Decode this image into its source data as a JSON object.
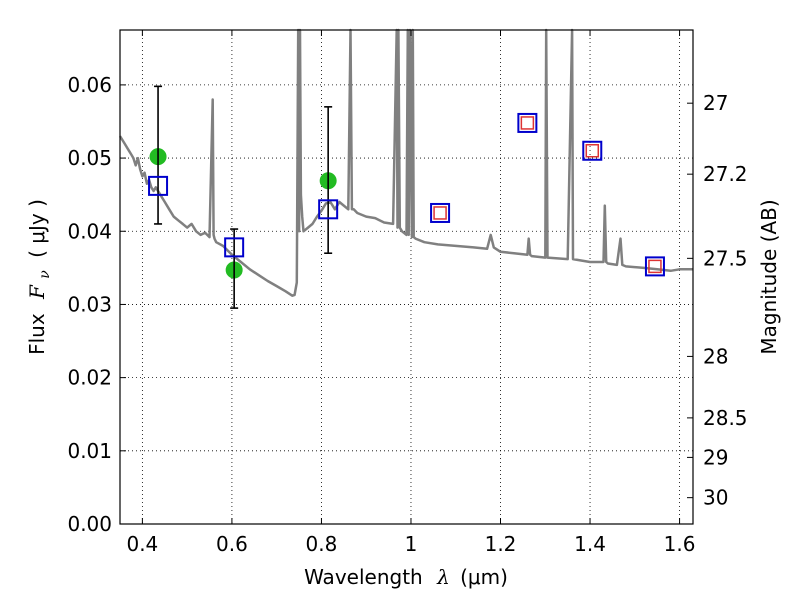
{
  "chart_data": {
    "type": "scatter",
    "xlabel": {
      "prefix": "Wavelength",
      "symbol": "λ",
      "unit": "(μm)"
    },
    "ylabel": {
      "prefix": "Flux",
      "symbol": "F",
      "sub": "ν",
      "unit": "( μJy )"
    },
    "y2label": "Magnitude (AB)",
    "xlim": [
      0.35,
      1.63
    ],
    "ylim": [
      0.0,
      0.0675
    ],
    "grid": true,
    "x_ticks": [
      0.4,
      0.6,
      0.8,
      1.0,
      1.2,
      1.4,
      1.6
    ],
    "x_tick_labels": [
      "0.4",
      "0.6",
      "0.8",
      "1",
      "1.2",
      "1.4",
      "1.6"
    ],
    "y_ticks": [
      0.0,
      0.01,
      0.02,
      0.03,
      0.04,
      0.05,
      0.06
    ],
    "y_tick_labels": [
      "0.00",
      "0.01",
      "0.02",
      "0.03",
      "0.04",
      "0.05",
      "0.06"
    ],
    "y2_ticks": [
      {
        "label": "27",
        "flux": 0.0575
      },
      {
        "label": "27.2",
        "flux": 0.0478
      },
      {
        "label": "27.5",
        "flux": 0.0363
      },
      {
        "label": "28",
        "flux": 0.0229
      },
      {
        "label": "28.5",
        "flux": 0.0145
      },
      {
        "label": "29",
        "flux": 0.0091
      },
      {
        "label": "30",
        "flux": 0.0036
      }
    ],
    "series": [
      {
        "name": "model spectrum",
        "style": "line",
        "color": "#808080",
        "x": [
          0.35,
          0.36,
          0.37,
          0.375,
          0.38,
          0.385,
          0.39,
          0.395,
          0.4,
          0.405,
          0.41,
          0.415,
          0.42,
          0.425,
          0.43,
          0.44,
          0.45,
          0.46,
          0.47,
          0.48,
          0.49,
          0.5,
          0.51,
          0.52,
          0.53,
          0.54,
          0.55,
          0.557,
          0.559,
          0.561,
          0.565,
          0.58,
          0.6,
          0.62,
          0.64,
          0.66,
          0.68,
          0.7,
          0.72,
          0.735,
          0.74,
          0.745,
          0.748,
          0.75,
          0.752,
          0.754,
          0.757,
          0.76,
          0.77,
          0.78,
          0.79,
          0.8,
          0.81,
          0.82,
          0.83,
          0.84,
          0.85,
          0.86,
          0.865,
          0.868,
          0.872,
          0.88,
          0.9,
          0.92,
          0.94,
          0.96,
          0.968,
          0.97,
          0.972,
          0.975,
          0.98,
          0.99,
          0.993,
          0.995,
          0.998,
          1.002,
          1.004,
          1.006,
          1.01,
          1.03,
          1.06,
          1.1,
          1.14,
          1.17,
          1.178,
          1.185,
          1.2,
          1.23,
          1.26,
          1.263,
          1.266,
          1.27,
          1.3,
          1.302,
          1.305,
          1.35,
          1.36,
          1.362,
          1.38,
          1.4,
          1.43,
          1.433,
          1.436,
          1.44,
          1.46,
          1.468,
          1.472,
          1.48,
          1.52,
          1.55,
          1.58,
          1.6,
          1.63
        ],
        "values": [
          0.053,
          0.052,
          0.051,
          0.0505,
          0.05,
          0.049,
          0.05,
          0.0485,
          0.0475,
          0.048,
          0.0465,
          0.047,
          0.046,
          0.0455,
          0.046,
          0.045,
          0.044,
          0.043,
          0.042,
          0.0415,
          0.041,
          0.0405,
          0.041,
          0.04,
          0.0395,
          0.0398,
          0.0392,
          0.058,
          0.0395,
          0.039,
          0.0385,
          0.038,
          0.0368,
          0.0358,
          0.0348,
          0.034,
          0.0332,
          0.0325,
          0.0318,
          0.0312,
          0.0313,
          0.033,
          0.0675,
          0.04,
          0.0675,
          0.045,
          0.042,
          0.04,
          0.0405,
          0.041,
          0.042,
          0.0428,
          0.0438,
          0.044,
          0.043,
          0.044,
          0.0435,
          0.043,
          0.0675,
          0.043,
          0.043,
          0.0425,
          0.042,
          0.0418,
          0.0412,
          0.041,
          0.0675,
          0.0405,
          0.0675,
          0.0405,
          0.04,
          0.0395,
          0.0675,
          0.0395,
          0.0675,
          0.0392,
          0.0675,
          0.0392,
          0.039,
          0.0385,
          0.0382,
          0.038,
          0.0378,
          0.0376,
          0.0395,
          0.0378,
          0.0372,
          0.037,
          0.0368,
          0.039,
          0.0368,
          0.0366,
          0.0364,
          0.0675,
          0.0364,
          0.0362,
          0.0675,
          0.0362,
          0.036,
          0.0358,
          0.0358,
          0.0435,
          0.0358,
          0.0356,
          0.0354,
          0.039,
          0.0354,
          0.0352,
          0.035,
          0.0348,
          0.0346,
          0.0348,
          0.0348
        ]
      },
      {
        "name": "measured",
        "style": "circle",
        "color": "#22bb22",
        "x": [
          0.435,
          0.605,
          0.815
        ],
        "values": [
          0.0502,
          0.0347,
          0.0469
        ]
      },
      {
        "name": "errorbars",
        "style": "errorbar",
        "color": "#000000",
        "x": [
          0.435,
          0.605,
          0.815
        ],
        "low": [
          0.041,
          0.0295,
          0.037
        ],
        "high": [
          0.0598,
          0.0403,
          0.057
        ]
      },
      {
        "name": "model photometry (blue)",
        "style": "square",
        "color": "#0000cc",
        "x": [
          0.435,
          0.605,
          0.815,
          1.065,
          1.26,
          1.405,
          1.545
        ],
        "values": [
          0.0462,
          0.0378,
          0.043,
          0.0425,
          0.0548,
          0.051,
          0.0352
        ]
      },
      {
        "name": "model photometry (red)",
        "style": "square",
        "color": "#dd3333",
        "x": [
          1.065,
          1.26,
          1.405,
          1.545
        ],
        "values": [
          0.0425,
          0.0548,
          0.051,
          0.0352
        ]
      }
    ]
  }
}
